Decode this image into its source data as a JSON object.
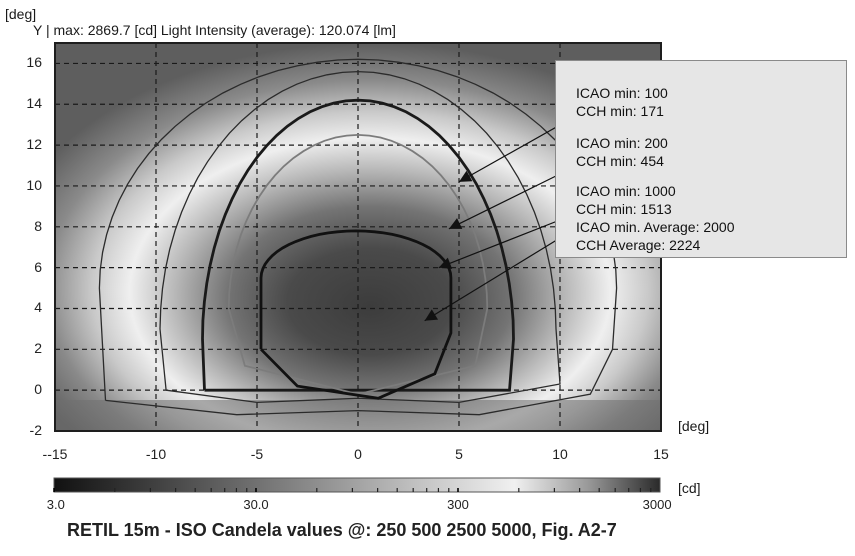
{
  "chart_data": {
    "type": "heatmap",
    "title": "RETIL 15m - ISO Candela values @: 250 500 2500 5000, Fig. A2-7",
    "header": "Y | max: 2869.7 [cd] Light Intensity (average): 120.074 [lm]",
    "xlabel": "[deg]",
    "ylabel": "[deg]",
    "xlim": [
      -15,
      15
    ],
    "ylim": [
      -2,
      17
    ],
    "x_ticks": [
      "--15",
      "-10",
      "-5",
      "0",
      "5",
      "10",
      "15"
    ],
    "x_tick_values": [
      -15,
      -10,
      -5,
      0,
      5,
      10,
      15
    ],
    "y_ticks": [
      "-2",
      "0",
      "2",
      "4",
      "6",
      "8",
      "10",
      "12",
      "14",
      "16"
    ],
    "y_tick_values": [
      -2,
      0,
      2,
      4,
      6,
      8,
      10,
      12,
      14,
      16
    ],
    "grid": true,
    "iso_candela_values": [
      250,
      500,
      2500,
      5000
    ],
    "colorbar": {
      "unit": "[cd]",
      "scale": "log",
      "range": [
        3.0,
        3000
      ],
      "tick_labels": [
        "3.0",
        "30.0",
        "300",
        "3000"
      ],
      "tick_values": [
        3.0,
        30.0,
        300,
        3000
      ]
    },
    "annotations": [
      {
        "lines": [
          "ICAO min: 100",
          "CCH min: 171"
        ],
        "target": [
          5,
          10.2
        ]
      },
      {
        "lines": [
          "ICAO min: 200",
          "CCH min: 454"
        ],
        "target": [
          4.5,
          7.9
        ]
      },
      {
        "lines": [
          "ICAO min: 1000",
          "CCH min: 1513",
          "ICAO min. Average: 2000",
          "CCH Average: 2224"
        ],
        "target": [
          4,
          6
        ]
      },
      {
        "lines": [],
        "target": [
          3.3,
          3.4
        ]
      }
    ]
  }
}
